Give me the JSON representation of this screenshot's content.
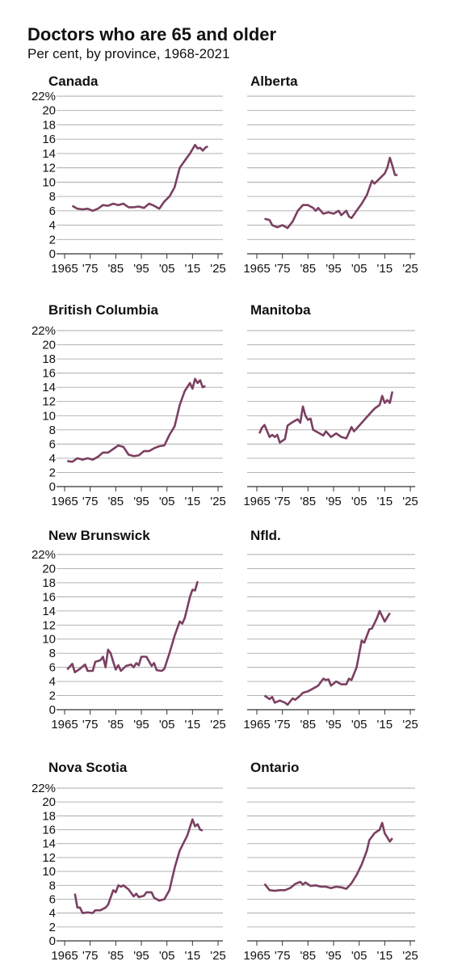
{
  "title": "Doctors who are 65 and older",
  "subtitle": "Per cent, by province, 1968-2021",
  "chart_data": [
    {
      "type": "line",
      "title": "Canada",
      "color": "#7b3f61",
      "grid": true,
      "show_ytick_labels": true,
      "x": [
        1968,
        1970,
        1972,
        1974,
        1976,
        1978,
        1980,
        1982,
        1984,
        1986,
        1988,
        1990,
        1992,
        1994,
        1996,
        1998,
        2000,
        2002,
        2004,
        2006,
        2008,
        2010,
        2012,
        2014,
        2016,
        2017,
        2018,
        2019,
        2020,
        2021
      ],
      "values": [
        6.7,
        6.3,
        6.2,
        6.3,
        6.0,
        6.3,
        6.8,
        6.7,
        7.0,
        6.8,
        7.0,
        6.5,
        6.5,
        6.6,
        6.4,
        7.0,
        6.7,
        6.3,
        7.3,
        8.0,
        9.3,
        12.0,
        13.0,
        14.0,
        15.2,
        14.7,
        14.8,
        14.4,
        14.8,
        15.0
      ],
      "xlim": [
        1965,
        2025
      ],
      "xticks": [
        1965,
        {
          "value": 1975,
          "label": "'75"
        },
        {
          "value": 1985,
          "label": "'85"
        },
        {
          "value": 1995,
          "label": "'95"
        },
        {
          "value": 2005,
          "label": "'05"
        },
        {
          "value": 2015,
          "label": "'15"
        },
        {
          "value": 2025,
          "label": "'25"
        }
      ],
      "ylim": [
        0,
        22
      ],
      "yticks": [
        0,
        2,
        4,
        6,
        8,
        10,
        12,
        14,
        16,
        18,
        20,
        {
          "value": 22,
          "label": "22%"
        }
      ]
    },
    {
      "type": "line",
      "title": "Alberta",
      "color": "#7b3f61",
      "grid": true,
      "show_ytick_labels": false,
      "x": [
        1968,
        1970,
        1971,
        1973,
        1975,
        1977,
        1979,
        1981,
        1983,
        1985,
        1987,
        1988,
        1989,
        1991,
        1993,
        1995,
        1997,
        1998,
        2000,
        2001,
        2002,
        2004,
        2006,
        2008,
        2010,
        2011,
        2013,
        2015,
        2016,
        2017,
        2018,
        2019,
        2020
      ],
      "values": [
        4.9,
        4.7,
        4.0,
        3.7,
        4.0,
        3.6,
        4.5,
        6.0,
        6.8,
        6.8,
        6.4,
        6.0,
        6.4,
        5.6,
        5.8,
        5.6,
        6.0,
        5.4,
        6.0,
        5.2,
        5.0,
        6.0,
        7.0,
        8.2,
        10.2,
        9.8,
        10.5,
        11.2,
        12.0,
        13.4,
        12.3,
        11.0,
        11.0
      ],
      "xlim": [
        1965,
        2025
      ],
      "xticks": [
        1965,
        {
          "value": 1975,
          "label": "'75"
        },
        {
          "value": 1985,
          "label": "'85"
        },
        {
          "value": 1995,
          "label": "'95"
        },
        {
          "value": 2005,
          "label": "'05"
        },
        {
          "value": 2015,
          "label": "'15"
        },
        {
          "value": 2025,
          "label": "'25"
        }
      ],
      "ylim": [
        0,
        22
      ],
      "yticks": [
        0,
        2,
        4,
        6,
        8,
        10,
        12,
        14,
        16,
        18,
        20,
        22
      ]
    },
    {
      "type": "line",
      "title": "British Columbia",
      "color": "#7b3f61",
      "grid": true,
      "show_ytick_labels": true,
      "x": [
        1966,
        1968,
        1970,
        1972,
        1974,
        1976,
        1978,
        1980,
        1982,
        1984,
        1986,
        1988,
        1990,
        1992,
        1994,
        1996,
        1998,
        2000,
        2002,
        2004,
        2006,
        2008,
        2010,
        2012,
        2014,
        2015,
        2016,
        2017,
        2018,
        2019,
        2020
      ],
      "values": [
        3.6,
        3.5,
        4.0,
        3.8,
        4.0,
        3.8,
        4.2,
        4.8,
        4.8,
        5.3,
        5.8,
        5.6,
        4.5,
        4.3,
        4.4,
        5.0,
        5.0,
        5.4,
        5.7,
        5.8,
        7.3,
        8.5,
        11.5,
        13.5,
        14.6,
        13.8,
        15.2,
        14.6,
        15.0,
        14.0,
        14.2
      ],
      "xlim": [
        1965,
        2025
      ],
      "xticks": [
        1965,
        {
          "value": 1975,
          "label": "'75"
        },
        {
          "value": 1985,
          "label": "'85"
        },
        {
          "value": 1995,
          "label": "'95"
        },
        {
          "value": 2005,
          "label": "'05"
        },
        {
          "value": 2015,
          "label": "'15"
        },
        {
          "value": 2025,
          "label": "'25"
        }
      ],
      "ylim": [
        0,
        22
      ],
      "yticks": [
        0,
        2,
        4,
        6,
        8,
        10,
        12,
        14,
        16,
        18,
        20,
        {
          "value": 22,
          "label": "22%"
        }
      ]
    },
    {
      "type": "line",
      "title": "Manitoba",
      "color": "#7b3f61",
      "grid": true,
      "show_ytick_labels": false,
      "x": [
        1966,
        1967,
        1968,
        1970,
        1971,
        1972,
        1973,
        1974,
        1976,
        1977,
        1979,
        1981,
        1982,
        1983,
        1984,
        1985,
        1986,
        1987,
        1989,
        1991,
        1992,
        1994,
        1996,
        1998,
        2000,
        2002,
        2003,
        2005,
        2007,
        2009,
        2011,
        2013,
        2014,
        2015,
        2016,
        2017,
        2018
      ],
      "values": [
        7.5,
        8.3,
        8.7,
        7.0,
        7.3,
        7.0,
        7.3,
        6.2,
        6.7,
        8.6,
        9.1,
        9.5,
        9.0,
        11.3,
        10.0,
        9.4,
        9.6,
        8.0,
        7.6,
        7.2,
        7.8,
        7.0,
        7.5,
        7.0,
        6.8,
        8.4,
        7.8,
        8.6,
        9.4,
        10.2,
        11.0,
        11.5,
        12.8,
        11.8,
        12.2,
        11.8,
        13.4
      ],
      "xlim": [
        1965,
        2025
      ],
      "xticks": [
        1965,
        {
          "value": 1975,
          "label": "'75"
        },
        {
          "value": 1985,
          "label": "'85"
        },
        {
          "value": 1995,
          "label": "'95"
        },
        {
          "value": 2005,
          "label": "'05"
        },
        {
          "value": 2015,
          "label": "'15"
        },
        {
          "value": 2025,
          "label": "'25"
        }
      ],
      "ylim": [
        0,
        22
      ],
      "yticks": [
        0,
        2,
        4,
        6,
        8,
        10,
        12,
        14,
        16,
        18,
        20,
        22
      ]
    },
    {
      "type": "line",
      "title": "New Brunswick",
      "color": "#7b3f61",
      "grid": true,
      "show_ytick_labels": true,
      "x": [
        1966,
        1968,
        1969,
        1971,
        1973,
        1974,
        1976,
        1977,
        1979,
        1980,
        1981,
        1982,
        1983,
        1984,
        1985,
        1986,
        1987,
        1989,
        1991,
        1992,
        1993,
        1994,
        1995,
        1996,
        1997,
        1999,
        2000,
        2001,
        2003,
        2004,
        2006,
        2008,
        2010,
        2011,
        2012,
        2014,
        2015,
        2016,
        2017
      ],
      "values": [
        5.7,
        6.5,
        5.3,
        5.8,
        6.4,
        5.5,
        5.5,
        6.8,
        7.0,
        7.5,
        6.0,
        8.5,
        8.0,
        6.8,
        5.7,
        6.3,
        5.5,
        6.2,
        6.4,
        6.0,
        6.6,
        6.3,
        7.5,
        7.5,
        7.5,
        6.2,
        6.6,
        5.6,
        5.5,
        5.8,
        8.0,
        10.5,
        12.5,
        12.2,
        13.0,
        16.0,
        17.0,
        16.9,
        18.2
      ],
      "xlim": [
        1965,
        2025
      ],
      "xticks": [
        1965,
        {
          "value": 1975,
          "label": "'75"
        },
        {
          "value": 1985,
          "label": "'85"
        },
        {
          "value": 1995,
          "label": "'95"
        },
        {
          "value": 2005,
          "label": "'05"
        },
        {
          "value": 2015,
          "label": "'15"
        },
        {
          "value": 2025,
          "label": "'25"
        }
      ],
      "ylim": [
        0,
        22
      ],
      "yticks": [
        0,
        2,
        4,
        6,
        8,
        10,
        12,
        14,
        16,
        18,
        20,
        {
          "value": 22,
          "label": "22%"
        }
      ]
    },
    {
      "type": "line",
      "title": "Nfld.",
      "color": "#7b3f61",
      "grid": true,
      "show_ytick_labels": false,
      "x": [
        1968,
        1970,
        1971,
        1972,
        1974,
        1976,
        1977,
        1979,
        1980,
        1982,
        1983,
        1985,
        1987,
        1989,
        1991,
        1992,
        1993,
        1994,
        1996,
        1998,
        2000,
        2001,
        2002,
        2004,
        2006,
        2007,
        2009,
        2010,
        2012,
        2013,
        2015,
        2017
      ],
      "values": [
        2.0,
        1.5,
        1.8,
        1.0,
        1.3,
        1.0,
        0.7,
        1.6,
        1.4,
        2.0,
        2.4,
        2.6,
        3.0,
        3.4,
        4.4,
        4.2,
        4.3,
        3.4,
        4.0,
        3.6,
        3.6,
        4.4,
        4.2,
        6.0,
        9.8,
        9.5,
        11.4,
        11.5,
        13.0,
        14.0,
        12.5,
        13.7
      ],
      "xlim": [
        1965,
        2025
      ],
      "xticks": [
        1965,
        {
          "value": 1975,
          "label": "'75"
        },
        {
          "value": 1985,
          "label": "'85"
        },
        {
          "value": 1995,
          "label": "'95"
        },
        {
          "value": 2005,
          "label": "'05"
        },
        {
          "value": 2015,
          "label": "'15"
        },
        {
          "value": 2025,
          "label": "'25"
        }
      ],
      "ylim": [
        0,
        22
      ],
      "yticks": [
        0,
        2,
        4,
        6,
        8,
        10,
        12,
        14,
        16,
        18,
        20,
        22
      ]
    },
    {
      "type": "line",
      "title": "Nova Scotia",
      "color": "#7b3f61",
      "grid": true,
      "show_ytick_labels": true,
      "x": [
        1969,
        1970,
        1971,
        1972,
        1974,
        1976,
        1977,
        1979,
        1981,
        1982,
        1984,
        1985,
        1986,
        1987,
        1988,
        1990,
        1992,
        1993,
        1994,
        1996,
        1997,
        1999,
        2000,
        2002,
        2004,
        2006,
        2008,
        2010,
        2013,
        2015,
        2016,
        2017,
        2018,
        2019
      ],
      "values": [
        6.8,
        4.8,
        4.8,
        4.0,
        4.1,
        4.0,
        4.4,
        4.4,
        4.8,
        5.2,
        7.3,
        7.0,
        8.0,
        7.8,
        8.0,
        7.4,
        6.4,
        6.8,
        6.3,
        6.5,
        7.0,
        7.0,
        6.2,
        5.8,
        6.0,
        7.3,
        10.5,
        13.0,
        15.2,
        17.5,
        16.5,
        16.8,
        16.0,
        15.9
      ],
      "xlim": [
        1965,
        2025
      ],
      "xticks": [
        1965,
        {
          "value": 1975,
          "label": "'75"
        },
        {
          "value": 1985,
          "label": "'85"
        },
        {
          "value": 1995,
          "label": "'95"
        },
        {
          "value": 2005,
          "label": "'05"
        },
        {
          "value": 2015,
          "label": "'15"
        },
        {
          "value": 2025,
          "label": "'25"
        }
      ],
      "ylim": [
        0,
        22
      ],
      "yticks": [
        0,
        2,
        4,
        6,
        8,
        10,
        12,
        14,
        16,
        18,
        20,
        {
          "value": 22,
          "label": "22%"
        }
      ]
    },
    {
      "type": "line",
      "title": "Ontario",
      "color": "#7b3f61",
      "grid": true,
      "show_ytick_labels": false,
      "x": [
        1968,
        1970,
        1972,
        1974,
        1976,
        1978,
        1980,
        1982,
        1983,
        1984,
        1986,
        1988,
        1990,
        1992,
        1994,
        1996,
        1998,
        2000,
        2002,
        2004,
        2006,
        2008,
        2009,
        2011,
        2013,
        2014,
        2015,
        2017,
        2018
      ],
      "values": [
        8.2,
        7.3,
        7.2,
        7.3,
        7.3,
        7.6,
        8.2,
        8.5,
        8.1,
        8.4,
        7.9,
        8.0,
        7.8,
        7.8,
        7.6,
        7.8,
        7.7,
        7.5,
        8.3,
        9.5,
        11.0,
        13.0,
        14.5,
        15.5,
        16.0,
        17.0,
        15.5,
        14.3,
        14.8
      ],
      "xlim": [
        1965,
        2025
      ],
      "xticks": [
        1965,
        {
          "value": 1975,
          "label": "'75"
        },
        {
          "value": 1985,
          "label": "'85"
        },
        {
          "value": 1995,
          "label": "'95"
        },
        {
          "value": 2005,
          "label": "'05"
        },
        {
          "value": 2015,
          "label": "'15"
        },
        {
          "value": 2025,
          "label": "'25"
        }
      ],
      "ylim": [
        0,
        22
      ],
      "yticks": [
        0,
        2,
        4,
        6,
        8,
        10,
        12,
        14,
        16,
        18,
        20,
        22
      ]
    }
  ]
}
